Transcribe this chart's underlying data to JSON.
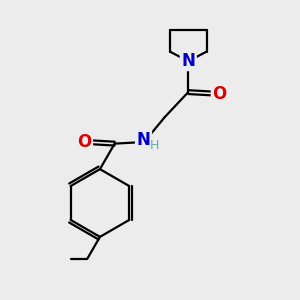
{
  "background_color": "#ececec",
  "bond_color": "#000000",
  "N_color": "#0000cc",
  "O_color": "#dd0000",
  "H_color": "#66aaaa",
  "figsize": [
    3.0,
    3.0
  ],
  "dpi": 100,
  "xlim": [
    0,
    10
  ],
  "ylim": [
    0,
    10
  ]
}
